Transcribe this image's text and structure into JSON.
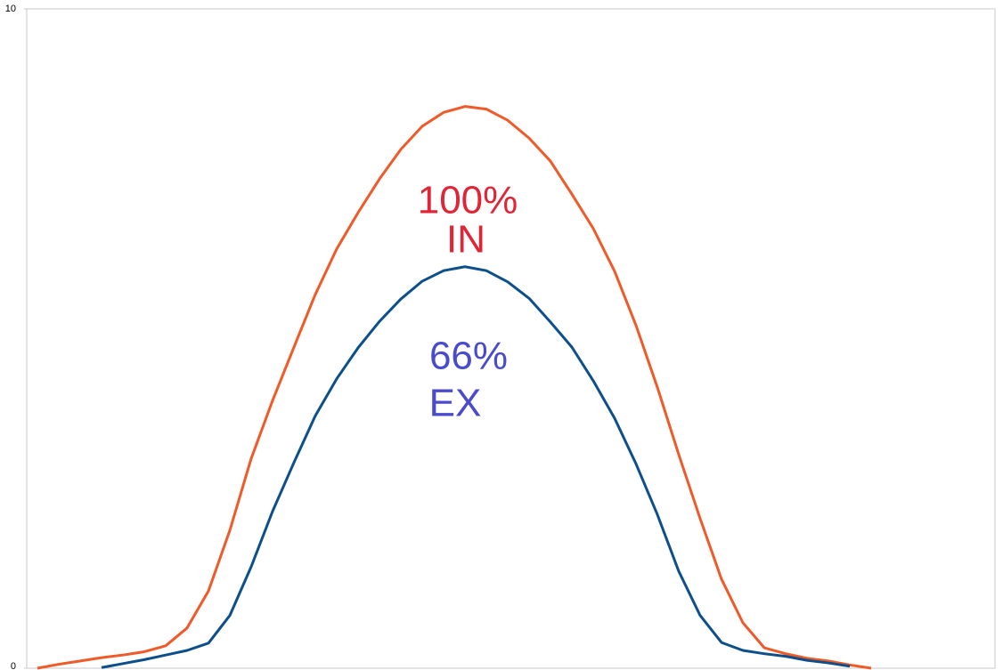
{
  "chart_data": {
    "type": "line",
    "categories": [
      null,
      null,
      null,
      null,
      null,
      null,
      null,
      null,
      null,
      null,
      null,
      null,
      null,
      null,
      null,
      null,
      null,
      null,
      null,
      null,
      null,
      null,
      null,
      null,
      null,
      null,
      null,
      null,
      null,
      null,
      null,
      null,
      null,
      null,
      null,
      null,
      null,
      null,
      null,
      null
    ],
    "series": [
      {
        "color": "#f05a28",
        "values": [
          0,
          0.06,
          0.11,
          0.16,
          0.2,
          0.25,
          0.34,
          0.61,
          1.17,
          2.09,
          3.18,
          4.06,
          4.87,
          5.67,
          6.36,
          6.91,
          7.42,
          7.87,
          8.22,
          8.43,
          8.52,
          8.48,
          8.31,
          8.04,
          7.69,
          7.19,
          6.67,
          6.02,
          5.2,
          4.26,
          3.24,
          2.27,
          1.35,
          0.69,
          0.31,
          0.22,
          0.15,
          0.11,
          0.05,
          0
        ]
      },
      {
        "color": "#0d4f8b",
        "values": [
          null,
          null,
          null,
          0.01,
          0.07,
          0.13,
          0.2,
          0.27,
          0.38,
          0.8,
          1.54,
          2.38,
          3.12,
          3.83,
          4.39,
          4.86,
          5.26,
          5.6,
          5.87,
          6.03,
          6.09,
          6.03,
          5.86,
          5.61,
          5.25,
          4.87,
          4.36,
          3.79,
          3.1,
          2.33,
          1.47,
          0.8,
          0.39,
          0.27,
          0.22,
          0.18,
          0.12,
          0.08,
          0.03,
          null
        ]
      }
    ],
    "ylim": [
      0,
      10
    ],
    "yticks": [
      0,
      10
    ],
    "annotations": [
      {
        "text": "100%",
        "color": "#e02636"
      },
      {
        "text": "IN",
        "color": "#e02636"
      },
      {
        "text": "66%",
        "color": "#4a4acc"
      },
      {
        "text": "EX",
        "color": "#4a4acc"
      }
    ]
  }
}
